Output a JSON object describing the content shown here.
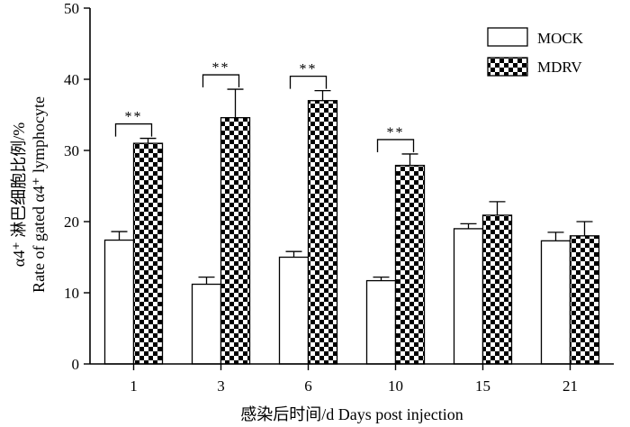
{
  "chart_data": {
    "type": "bar",
    "categories": [
      "1",
      "3",
      "6",
      "10",
      "15",
      "21"
    ],
    "series": [
      {
        "name": "MOCK",
        "pattern": "white",
        "values": [
          17.4,
          11.2,
          15.0,
          11.7,
          19.0,
          17.3
        ],
        "errors": [
          1.2,
          1.0,
          0.8,
          0.5,
          0.7,
          1.2
        ]
      },
      {
        "name": "MDRV",
        "pattern": "checkerboard",
        "values": [
          31.0,
          34.6,
          37.0,
          27.9,
          20.9,
          18.0
        ],
        "errors": [
          0.7,
          4.0,
          1.4,
          1.6,
          1.9,
          2.0
        ]
      }
    ],
    "significance": [
      "**",
      "**",
      "**",
      "**",
      "",
      ""
    ],
    "xlabel": "感染后时间/d Days post injection",
    "ylabel_line1": "α4⁺ 淋巴细胞比例/%",
    "ylabel_line2": "Rate of gated α4⁺ lymphocyte",
    "ylim": [
      0,
      50
    ],
    "yticks": [
      0,
      10,
      20,
      30,
      40,
      50
    ],
    "legend_position": "top-right",
    "colors": {
      "mock_fill": "#ffffff",
      "checker_dark": "#000000",
      "checker_light": "#ffffff",
      "stroke": "#000000"
    }
  }
}
